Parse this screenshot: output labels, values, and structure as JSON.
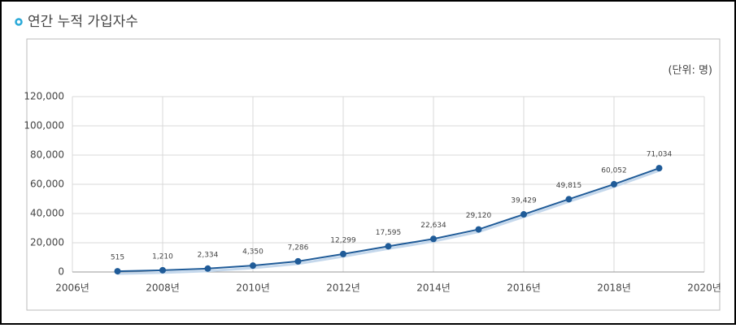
{
  "chart_data": {
    "type": "line",
    "title": "연간 누적 가입자수",
    "unit_label": "(단위: 명)",
    "x": [
      2007,
      2008,
      2009,
      2010,
      2011,
      2012,
      2013,
      2014,
      2015,
      2016,
      2017,
      2018,
      2019
    ],
    "values": [
      515,
      1210,
      2334,
      4350,
      7286,
      12299,
      17595,
      22634,
      29120,
      39429,
      49815,
      60052,
      71034
    ],
    "value_labels": [
      "515",
      "1,210",
      "2,334",
      "4,350",
      "7,286",
      "12,299",
      "17,595",
      "22,634",
      "29,120",
      "39,429",
      "49,815",
      "60,052",
      "71,034"
    ],
    "color": "#1f5b98",
    "xlim": [
      2006,
      2020
    ],
    "xticks": [
      {
        "value": 2006,
        "label": "2006년"
      },
      {
        "value": 2008,
        "label": "2008년"
      },
      {
        "value": 2010,
        "label": "2010년"
      },
      {
        "value": 2012,
        "label": "2012년"
      },
      {
        "value": 2014,
        "label": "2014년"
      },
      {
        "value": 2016,
        "label": "2016년"
      },
      {
        "value": 2018,
        "label": "2018년"
      },
      {
        "value": 2020,
        "label": "2020년"
      }
    ],
    "ylim": [
      0,
      120000
    ],
    "yticks": [
      0,
      {
        "value": 20000,
        "label": "20,000"
      },
      {
        "value": 40000,
        "label": "40,000"
      },
      {
        "value": 60000,
        "label": "60,000"
      },
      {
        "value": 80000,
        "label": "80,000"
      },
      {
        "value": 100000,
        "label": "100,000"
      },
      {
        "value": 120000,
        "label": "120,000"
      }
    ],
    "grid": true
  }
}
